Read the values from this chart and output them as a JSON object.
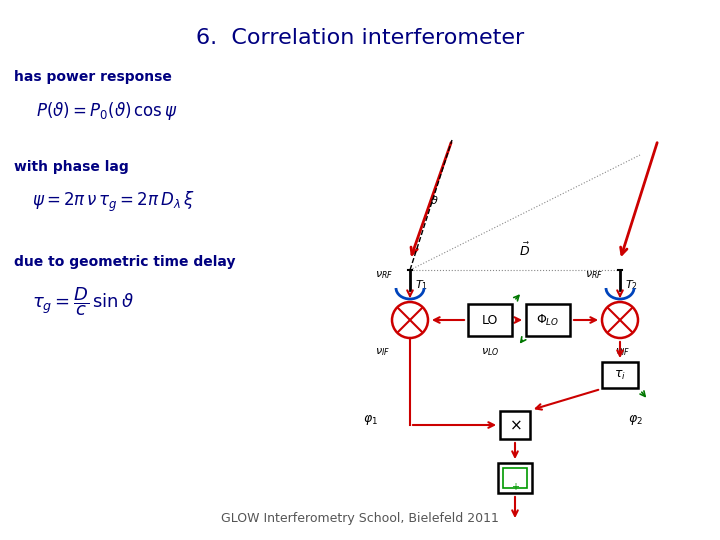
{
  "title": "6.  Correlation interferometer",
  "title_color": "#000080",
  "title_fontsize": 16,
  "bg_color": "#ffffff",
  "footer_text": "GLOW Interferometry School, Bielefeld 2011",
  "footer_fontsize": 9,
  "footer_color": "#555555",
  "text_color": "#000080",
  "label1": "has power response",
  "formula1": "$P(\\vartheta) = P_0(\\vartheta)\\,\\cos\\psi$",
  "label2": "with phase lag",
  "formula2": "$\\psi = 2\\pi\\,\\nu\\,\\tau_g = 2\\pi\\,D_\\lambda\\,\\xi$",
  "label3": "due to geometric time delay",
  "formula3": "$\\tau_g = \\dfrac{D}{c}\\,\\sin\\vartheta$",
  "red": "#cc0000",
  "blue": "#0044bb",
  "green": "#007700",
  "black": "#000000",
  "gray": "#888888",
  "darkgray": "#444444"
}
